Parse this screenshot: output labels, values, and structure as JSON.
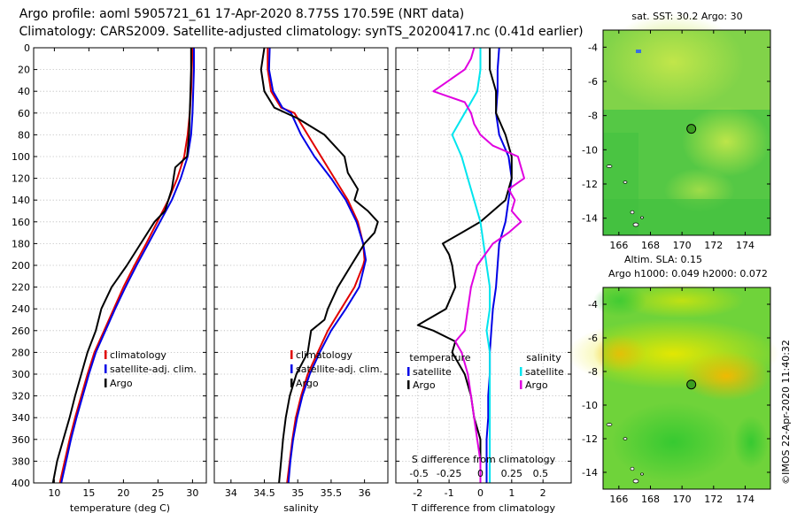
{
  "header": {
    "title_line1": "Argo profile: aoml 5905721_61 17-Apr-2020 8.775S 170.59E (NRT data)",
    "title_line2": "Climatology: CARS2009. Satellite-adjusted climatology: synTS_20200417.nc (0.41d earlier)"
  },
  "colors": {
    "climatology": "#e00000",
    "satellite": "#0000e6",
    "argo": "#000000",
    "sat_salinity": "#00e5ee",
    "argo_salinity": "#e000e0"
  },
  "depth_ticks": [
    "0",
    "20",
    "40",
    "60",
    "80",
    "100",
    "120",
    "140",
    "160",
    "180",
    "200",
    "220",
    "240",
    "260",
    "280",
    "300",
    "320",
    "340",
    "360",
    "380",
    "400"
  ],
  "footer": {
    "credit": "©IMOS 22-Apr-2020 11:40:32"
  },
  "chart_data": [
    {
      "type": "line",
      "name": "temperature",
      "xlabel": "temperature (deg C)",
      "ylabel": "depth",
      "xlim": [
        7,
        32
      ],
      "ylim": [
        400,
        0
      ],
      "xticks": [
        "10",
        "15",
        "20",
        "25",
        "30"
      ],
      "xtick_values": [
        10,
        15,
        20,
        25,
        30
      ],
      "y_grid": true,
      "legend": {
        "position": "center-right",
        "items": [
          {
            "label": "climatology",
            "color": "#e00000"
          },
          {
            "label": "satellite-adj. clim.",
            "color": "#0000e6"
          },
          {
            "label": "Argo",
            "color": "#000000"
          }
        ]
      },
      "series": [
        {
          "name": "climatology",
          "color": "#e00000",
          "depth": [
            0,
            20,
            40,
            60,
            80,
            100,
            120,
            140,
            160,
            180,
            200,
            220,
            240,
            260,
            280,
            300,
            320,
            340,
            360,
            380,
            400
          ],
          "values": [
            30.0,
            29.9,
            29.8,
            29.6,
            29.3,
            28.8,
            27.8,
            26.5,
            24.9,
            23.3,
            21.6,
            20.0,
            18.6,
            17.2,
            15.8,
            14.8,
            13.9,
            13.0,
            12.2,
            11.5,
            10.8
          ]
        },
        {
          "name": "satellite-adj. clim.",
          "color": "#0000e6",
          "depth": [
            0,
            20,
            40,
            60,
            80,
            100,
            120,
            140,
            160,
            180,
            200,
            220,
            240,
            260,
            280,
            300,
            320,
            340,
            360,
            380,
            400
          ],
          "values": [
            30.2,
            30.2,
            30.1,
            30.0,
            29.8,
            29.3,
            28.3,
            27.0,
            25.3,
            23.6,
            21.9,
            20.3,
            18.8,
            17.4,
            16.0,
            15.0,
            14.1,
            13.2,
            12.4,
            11.7,
            11.0
          ]
        },
        {
          "name": "Argo",
          "color": "#000000",
          "depth": [
            0,
            20,
            40,
            60,
            80,
            100,
            110,
            130,
            150,
            160,
            180,
            200,
            220,
            240,
            260,
            280,
            300,
            320,
            340,
            360,
            380,
            400
          ],
          "values": [
            29.8,
            29.8,
            29.7,
            29.6,
            29.5,
            29.2,
            27.5,
            27.0,
            26.0,
            24.5,
            22.5,
            20.5,
            18.3,
            16.8,
            16.0,
            14.8,
            13.9,
            13.0,
            12.2,
            11.3,
            10.4,
            9.8
          ]
        }
      ]
    },
    {
      "type": "line",
      "name": "salinity",
      "xlabel": "salinity",
      "ylabel": "depth",
      "xlim": [
        33.75,
        36.35
      ],
      "ylim": [
        400,
        0
      ],
      "xticks": [
        "34",
        "34.5",
        "35",
        "35.5",
        "36"
      ],
      "xtick_values": [
        34,
        34.5,
        35,
        35.5,
        36
      ],
      "y_grid": true,
      "legend": {
        "position": "center-right",
        "items": [
          {
            "label": "climatology",
            "color": "#e00000"
          },
          {
            "label": "satellite-adj. clim.",
            "color": "#0000e6"
          },
          {
            "label": "Argo",
            "color": "#000000"
          }
        ]
      },
      "series": [
        {
          "name": "climatology",
          "color": "#e00000",
          "depth": [
            0,
            20,
            40,
            55,
            60,
            80,
            100,
            120,
            140,
            160,
            180,
            195,
            200,
            220,
            240,
            260,
            280,
            300,
            320,
            340,
            360,
            380,
            400
          ],
          "values": [
            34.55,
            34.55,
            34.6,
            34.75,
            34.95,
            35.15,
            35.35,
            35.55,
            35.75,
            35.9,
            35.98,
            36.0,
            35.98,
            35.85,
            35.65,
            35.45,
            35.3,
            35.15,
            35.05,
            34.97,
            34.92,
            34.88,
            34.84
          ]
        },
        {
          "name": "satellite-adj. clim.",
          "color": "#0000e6",
          "depth": [
            0,
            20,
            40,
            55,
            60,
            80,
            100,
            120,
            140,
            160,
            180,
            195,
            200,
            220,
            240,
            260,
            280,
            300,
            320,
            340,
            360,
            380,
            400
          ],
          "values": [
            34.58,
            34.57,
            34.63,
            34.77,
            34.9,
            35.05,
            35.25,
            35.5,
            35.72,
            35.88,
            35.98,
            36.02,
            36.0,
            35.92,
            35.72,
            35.5,
            35.33,
            35.18,
            35.07,
            34.99,
            34.93,
            34.89,
            34.86
          ]
        },
        {
          "name": "Argo",
          "color": "#000000",
          "depth": [
            0,
            20,
            40,
            55,
            65,
            80,
            100,
            115,
            130,
            140,
            150,
            160,
            170,
            180,
            190,
            200,
            210,
            220,
            240,
            250,
            260,
            280,
            300,
            320,
            340,
            360,
            380,
            400
          ],
          "values": [
            34.5,
            34.45,
            34.5,
            34.65,
            35.0,
            35.4,
            35.7,
            35.75,
            35.9,
            35.85,
            36.05,
            36.2,
            36.15,
            36.0,
            35.9,
            35.8,
            35.7,
            35.6,
            35.45,
            35.4,
            35.2,
            35.15,
            34.98,
            34.88,
            34.82,
            34.78,
            34.75,
            34.72
          ]
        }
      ]
    },
    {
      "type": "line",
      "name": "differences",
      "xlabel": "T difference from climatology",
      "xlabel_top": "S difference from climatology",
      "ylabel": "depth",
      "xlim": [
        -2.7,
        2.9
      ],
      "ylim": [
        400,
        0
      ],
      "xticks": [
        "-2",
        "-1",
        "0",
        "1",
        "2"
      ],
      "xtick_values": [
        -2,
        -1,
        0,
        1,
        2
      ],
      "xticks_top": [
        "-0.5",
        "-0.25",
        "0",
        "0.25",
        "0.5"
      ],
      "xtick_top_values": [
        -1.96,
        -1.0,
        0.0,
        1.0,
        1.92
      ],
      "x_grid": true,
      "y_grid": true,
      "legend": {
        "position": "lower-left and lower-right",
        "left_title": "temperature",
        "right_title": "salinity",
        "left_items": [
          {
            "label": "satellite",
            "color": "#0000e6"
          },
          {
            "label": "Argo",
            "color": "#000000"
          }
        ],
        "right_items": [
          {
            "label": "satellite",
            "color": "#00e5ee"
          },
          {
            "label": "Argo",
            "color": "#e000e0"
          }
        ]
      },
      "series": [
        {
          "name": "T satellite",
          "color": "#0000e6",
          "depth": [
            0,
            20,
            40,
            60,
            80,
            100,
            120,
            140,
            160,
            180,
            200,
            220,
            240,
            260,
            280,
            300,
            320,
            340,
            360,
            380,
            400
          ],
          "values": [
            0.6,
            0.55,
            0.55,
            0.5,
            0.6,
            0.9,
            1.0,
            0.9,
            0.8,
            0.6,
            0.55,
            0.5,
            0.4,
            0.35,
            0.3,
            0.3,
            0.25,
            0.25,
            0.2,
            0.2,
            0.2
          ]
        },
        {
          "name": "T Argo",
          "color": "#000000",
          "depth": [
            0,
            20,
            40,
            60,
            80,
            100,
            120,
            140,
            160,
            170,
            180,
            190,
            200,
            220,
            240,
            255,
            260,
            270,
            280,
            300,
            320,
            340,
            360,
            380,
            400
          ],
          "values": [
            0.3,
            0.3,
            0.5,
            0.5,
            0.8,
            1.0,
            1.0,
            0.8,
            0.0,
            -0.6,
            -1.2,
            -1.0,
            -0.9,
            -0.8,
            -1.1,
            -2.0,
            -1.5,
            -0.8,
            -0.9,
            -0.5,
            -0.3,
            -0.2,
            0.0,
            0.0,
            0.0
          ]
        },
        {
          "name": "S satellite",
          "color": "#00e5ee",
          "depth": [
            0,
            20,
            40,
            60,
            80,
            100,
            120,
            140,
            160,
            180,
            200,
            220,
            240,
            260,
            280,
            300,
            320,
            340,
            360,
            380,
            400
          ],
          "values": [
            0.0,
            0.0,
            -0.1,
            -0.5,
            -0.9,
            -0.6,
            -0.4,
            -0.2,
            0.0,
            0.1,
            0.2,
            0.3,
            0.3,
            0.2,
            0.3,
            0.3,
            0.3,
            0.3,
            0.3,
            0.3,
            0.3
          ]
        },
        {
          "name": "S Argo",
          "color": "#e000e0",
          "depth": [
            0,
            10,
            20,
            30,
            40,
            50,
            60,
            70,
            80,
            90,
            100,
            110,
            120,
            130,
            140,
            150,
            160,
            170,
            180,
            200,
            220,
            240,
            260,
            270,
            280,
            300,
            320,
            340,
            360,
            380,
            400
          ],
          "values": [
            -0.2,
            -0.3,
            -0.5,
            -1.0,
            -1.5,
            -0.5,
            -0.3,
            -0.2,
            0.0,
            0.4,
            1.2,
            1.3,
            1.4,
            0.9,
            1.1,
            1.0,
            1.3,
            0.9,
            0.4,
            -0.1,
            -0.3,
            -0.4,
            -0.5,
            -0.8,
            -0.6,
            -0.4,
            -0.3,
            -0.2,
            -0.1,
            0.0,
            0.0
          ]
        }
      ]
    },
    {
      "type": "heatmap",
      "name": "sst_map",
      "title": "sat. SST: 30.2 Argo: 30",
      "xlim": [
        165.0,
        175.6
      ],
      "ylim": [
        -15,
        -3
      ],
      "xticks": [
        "166",
        "168",
        "170",
        "172",
        "174"
      ],
      "xtick_values": [
        166,
        168,
        170,
        172,
        174
      ],
      "yticks": [
        "-4",
        "-6",
        "-8",
        "-10",
        "-12",
        "-14"
      ],
      "ytick_values": [
        -4,
        -6,
        -8,
        -10,
        -12,
        -14
      ],
      "argo_position": [
        170.59,
        -8.775
      ]
    },
    {
      "type": "heatmap",
      "name": "sla_map",
      "title_line1": "Altim. SLA: 0.15",
      "title_line2": "Argo h1000: 0.049 h2000: 0.072",
      "xlim": [
        165.0,
        175.6
      ],
      "ylim": [
        -15,
        -3
      ],
      "xticks": [
        "166",
        "168",
        "170",
        "172",
        "174"
      ],
      "xtick_values": [
        166,
        168,
        170,
        172,
        174
      ],
      "yticks": [
        "-4",
        "-6",
        "-8",
        "-10",
        "-12",
        "-14"
      ],
      "ytick_values": [
        -4,
        -6,
        -8,
        -10,
        -12,
        -14
      ],
      "argo_position": [
        170.59,
        -8.775
      ]
    }
  ]
}
